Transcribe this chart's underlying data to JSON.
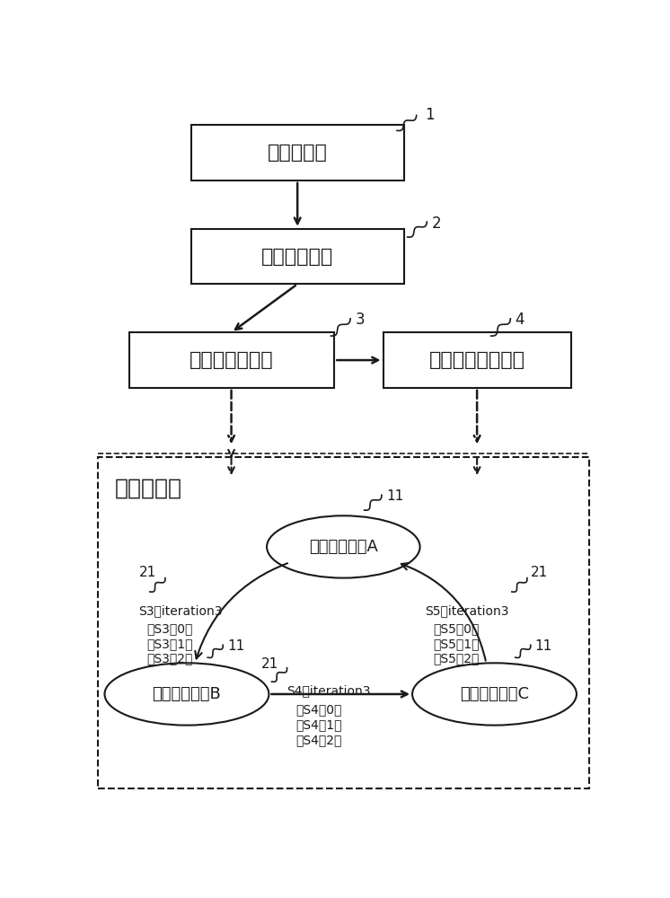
{
  "bg_color": "#ffffff",
  "line_color": "#1a1a1a",
  "box1_label": "代码存储器",
  "box2_label": "代码读取模块",
  "box3_label": "迭代图生成模块",
  "box4_label": "迭代运算触发模块",
  "title_label": "迭代图模型",
  "nodeA_label": "迭代计算节点A",
  "nodeB_label": "迭代计算节点B",
  "nodeC_label": "迭代计算节点C",
  "s3_label": "S3，iteration3",
  "s3_0": "（S3，0）",
  "s3_1": "（S3，1）",
  "s3_2": "（S3，2）",
  "s4_label": "S4，iteration3",
  "s4_0": "（S4，0）",
  "s4_1": "（S4，1）",
  "s4_2": "（S4，2）",
  "s5_label": "S5，iteration3",
  "s5_0": "（S5，0）",
  "s5_1": "（S5，1）",
  "s5_2": "（S5，2）"
}
